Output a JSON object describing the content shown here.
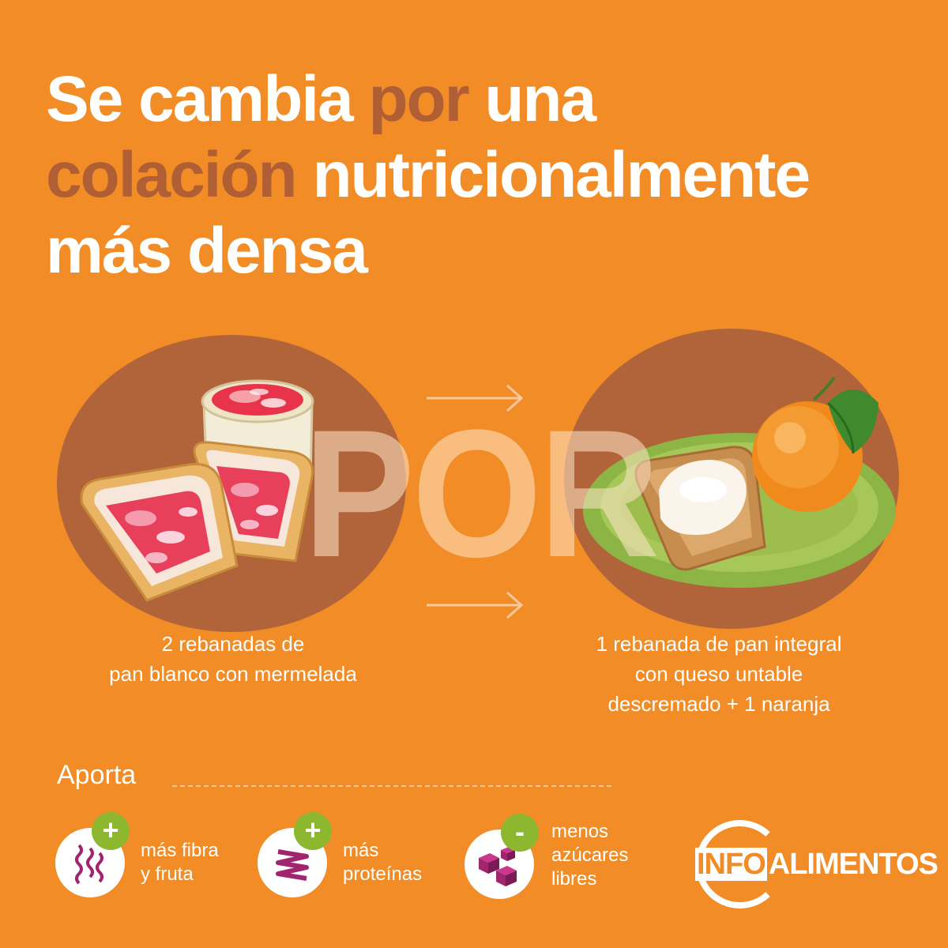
{
  "title": {
    "line1_a": "Se cambia ",
    "line1_b": "por",
    "line1_c": " una",
    "line2_a": "colación",
    "line2_b": " nutricionalmente",
    "line3": "más densa"
  },
  "por_word": "POR",
  "left_caption": {
    "line1": "2 rebanadas de",
    "line2": "pan blanco con mermelada"
  },
  "right_caption": {
    "line1": "1 rebanada de pan integral",
    "line2": "con queso untable",
    "line3": "descremado + 1 naranja"
  },
  "aporta": "Aporta",
  "benefits": [
    {
      "sign": "+",
      "line1": "más fibra",
      "line2": "y fruta",
      "icon": "fiber-icon"
    },
    {
      "sign": "+",
      "line1": "más",
      "line2": "proteínas",
      "icon": "protein-icon"
    },
    {
      "sign": "-",
      "line1": "menos",
      "line2": "azúcares",
      "line3": "libres",
      "icon": "sugar-cubes-icon"
    }
  ],
  "logo": {
    "part1": "INFO",
    "part2": "ALIMENTOS"
  },
  "colors": {
    "background": "#f18c27",
    "accent_brown": "#b05f34",
    "circle": "#b1643a",
    "badge_green": "#8cb72e",
    "magenta": "#a0246e"
  }
}
